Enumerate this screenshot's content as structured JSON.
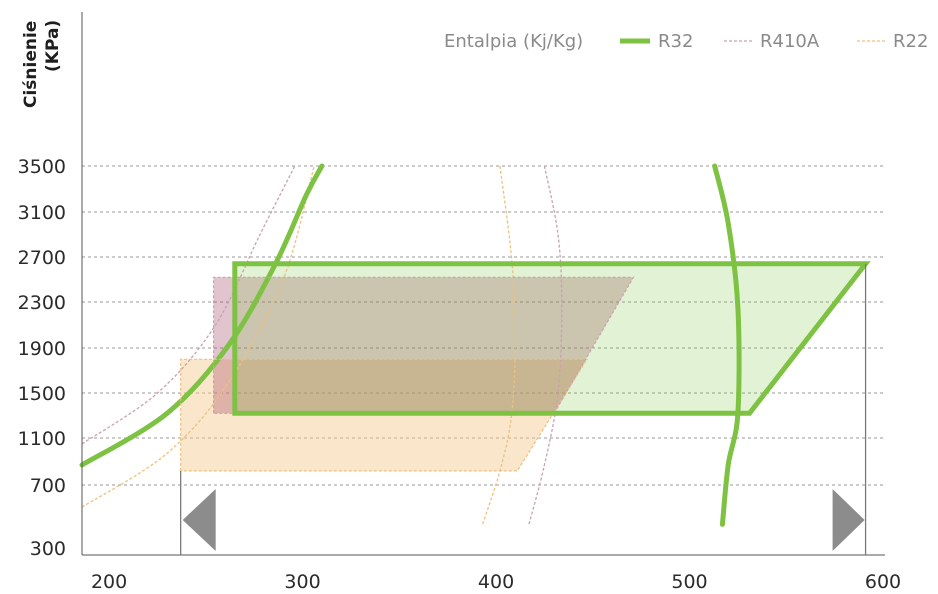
{
  "chart_data": {
    "type": "line",
    "ylabel": [
      "Ciśnienie",
      "(KPa)"
    ],
    "x_ticks": [
      200,
      300,
      400,
      500,
      600
    ],
    "y_ticks": [
      300,
      700,
      1100,
      1500,
      1900,
      2300,
      2700,
      3100,
      3500
    ],
    "xlim": [
      186,
      600
    ],
    "grid": "horizontal dashed",
    "legend_position": "top-right",
    "legend": {
      "title": "Entalpia (Kj/Kg)",
      "entries": [
        {
          "label": "R32",
          "color": "#7dc242",
          "style": "solid-thick"
        },
        {
          "label": "R410A",
          "color": "#c9a0b4",
          "style": "dashed"
        },
        {
          "label": "R22",
          "color": "#eec07e",
          "style": "dashed"
        }
      ]
    },
    "series": [
      {
        "name": "R32",
        "color": "#7dc242",
        "fill": "#7dc242",
        "fill_opacity": 0.22,
        "cycle": [
          [
            265,
            1320
          ],
          [
            265,
            2640
          ],
          [
            591,
            2640
          ],
          [
            531,
            1320
          ]
        ],
        "saturation_liquid": [
          [
            186,
            870
          ],
          [
            230,
            1320
          ],
          [
            262,
            1930
          ],
          [
            286,
            2640
          ],
          [
            302,
            3250
          ],
          [
            310,
            3500
          ]
        ],
        "saturation_vapor": [
          [
            513,
            3500
          ],
          [
            520,
            3000
          ],
          [
            525,
            2250
          ],
          [
            525,
            1320
          ],
          [
            520,
            870
          ],
          [
            517,
            450
          ]
        ]
      },
      {
        "name": "R410A",
        "color": "#c9a0b4",
        "fill": "#9e3c5c",
        "fill_opacity": 0.3,
        "cycle": [
          [
            254,
            1320
          ],
          [
            254,
            2520
          ],
          [
            471,
            2520
          ],
          [
            430,
            1320
          ]
        ],
        "saturation_liquid": [
          [
            186,
            1050
          ],
          [
            225,
            1500
          ],
          [
            255,
            2100
          ],
          [
            278,
            2900
          ],
          [
            296,
            3500
          ]
        ],
        "saturation_vapor": [
          [
            425,
            3500
          ],
          [
            432,
            2900
          ],
          [
            434,
            2250
          ],
          [
            432,
            1500
          ],
          [
            425,
            870
          ],
          [
            417,
            450
          ]
        ]
      },
      {
        "name": "R22",
        "color": "#eec07e",
        "fill": "#f5c88a",
        "fill_opacity": 0.45,
        "cycle": [
          [
            237,
            820
          ],
          [
            237,
            1800
          ],
          [
            447,
            1800
          ],
          [
            411,
            820
          ]
        ],
        "saturation_liquid": [
          [
            186,
            560
          ],
          [
            230,
            970
          ],
          [
            262,
            1600
          ],
          [
            290,
            2500
          ],
          [
            306,
            3500
          ]
        ],
        "saturation_vapor": [
          [
            402,
            3500
          ],
          [
            408,
            2700
          ],
          [
            410,
            2000
          ],
          [
            408,
            1300
          ],
          [
            402,
            820
          ],
          [
            393,
            450
          ]
        ]
      }
    ]
  }
}
